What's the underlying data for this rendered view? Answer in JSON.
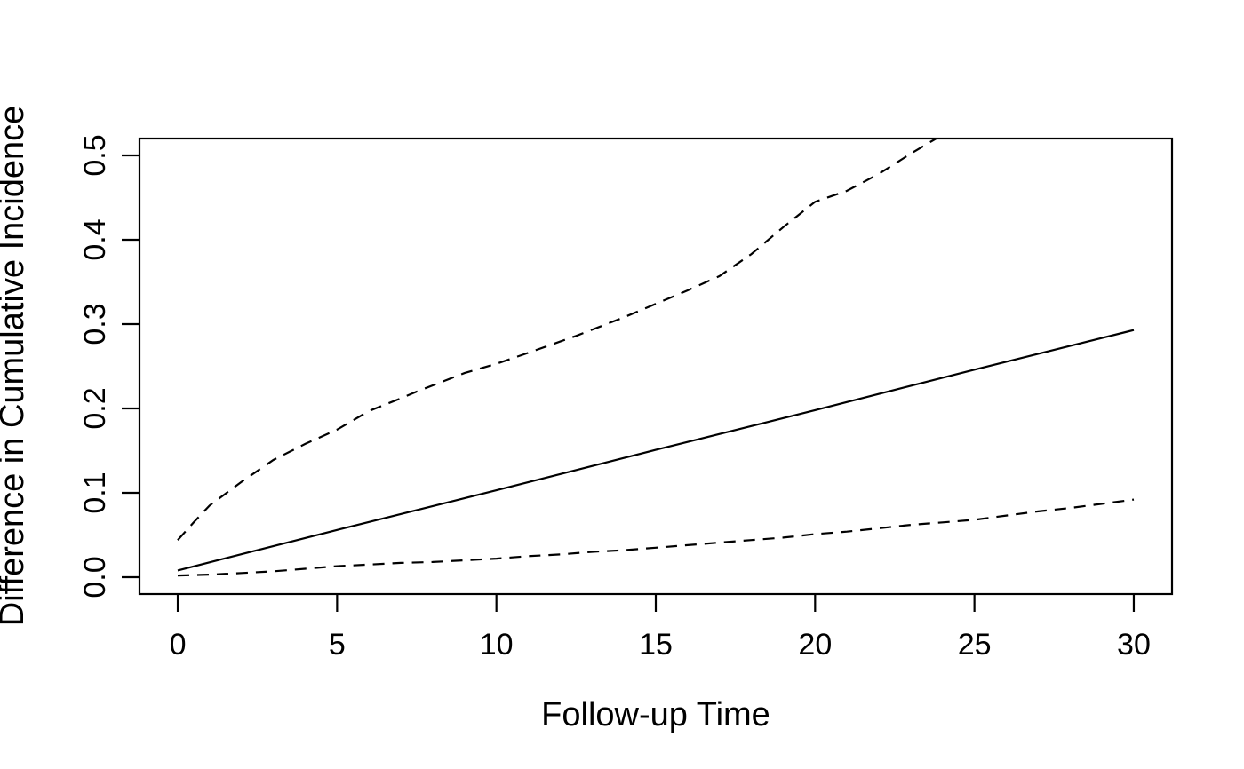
{
  "figure": {
    "background_color": "#ffffff",
    "line_color": "#000000",
    "description": "Line plot of difference in cumulative incidence over follow-up time with dashed 95% confidence band"
  },
  "chart_data": {
    "type": "line",
    "title": "",
    "xlabel": "Follow-up Time",
    "ylabel": "Difference in Cumulative Incidence",
    "xlim": [
      0,
      30
    ],
    "ylim": [
      0,
      0.5
    ],
    "grid": false,
    "legend_position": "none",
    "x_ticks": {
      "values": [
        0,
        5,
        10,
        15,
        20,
        25,
        30
      ],
      "labels": [
        "0",
        "5",
        "10",
        "15",
        "20",
        "25",
        "30"
      ]
    },
    "y_ticks": {
      "values": [
        0.0,
        0.1,
        0.2,
        0.3,
        0.4,
        0.5
      ],
      "labels": [
        "0.0",
        "0.1",
        "0.2",
        "0.3",
        "0.4",
        "0.5"
      ]
    },
    "series": [
      {
        "name": "estimate",
        "style": "solid",
        "x": [
          0,
          5,
          10,
          15,
          20,
          25,
          30
        ],
        "y": [
          0.008,
          0.056,
          0.103,
          0.151,
          0.198,
          0.246,
          0.293
        ]
      },
      {
        "name": "upper-confidence-limit",
        "style": "dashed",
        "x": [
          0,
          0.5,
          1,
          1.5,
          2,
          2.5,
          3,
          4,
          5,
          6,
          7,
          7.5,
          9,
          10,
          11,
          12.5,
          14,
          15,
          16,
          17,
          18,
          19,
          20,
          21,
          22,
          23,
          23.8
        ],
        "y": [
          0.044,
          0.065,
          0.085,
          0.099,
          0.113,
          0.126,
          0.139,
          0.158,
          0.175,
          0.197,
          0.212,
          0.22,
          0.242,
          0.253,
          0.266,
          0.286,
          0.308,
          0.324,
          0.34,
          0.357,
          0.383,
          0.415,
          0.445,
          0.458,
          0.478,
          0.502,
          0.52
        ]
      },
      {
        "name": "lower-confidence-limit",
        "style": "dashed",
        "x": [
          0,
          1,
          2,
          3,
          4,
          5,
          6,
          7,
          8,
          9,
          10,
          11,
          12,
          13,
          14,
          15,
          16,
          17,
          18,
          19,
          20,
          21,
          22,
          23,
          24,
          25,
          26,
          27,
          28,
          29,
          30
        ],
        "y": [
          0.002,
          0.003,
          0.005,
          0.007,
          0.01,
          0.013,
          0.015,
          0.017,
          0.018,
          0.02,
          0.022,
          0.025,
          0.027,
          0.03,
          0.032,
          0.035,
          0.038,
          0.041,
          0.044,
          0.047,
          0.051,
          0.054,
          0.058,
          0.062,
          0.065,
          0.068,
          0.073,
          0.078,
          0.082,
          0.087,
          0.092
        ]
      }
    ]
  }
}
